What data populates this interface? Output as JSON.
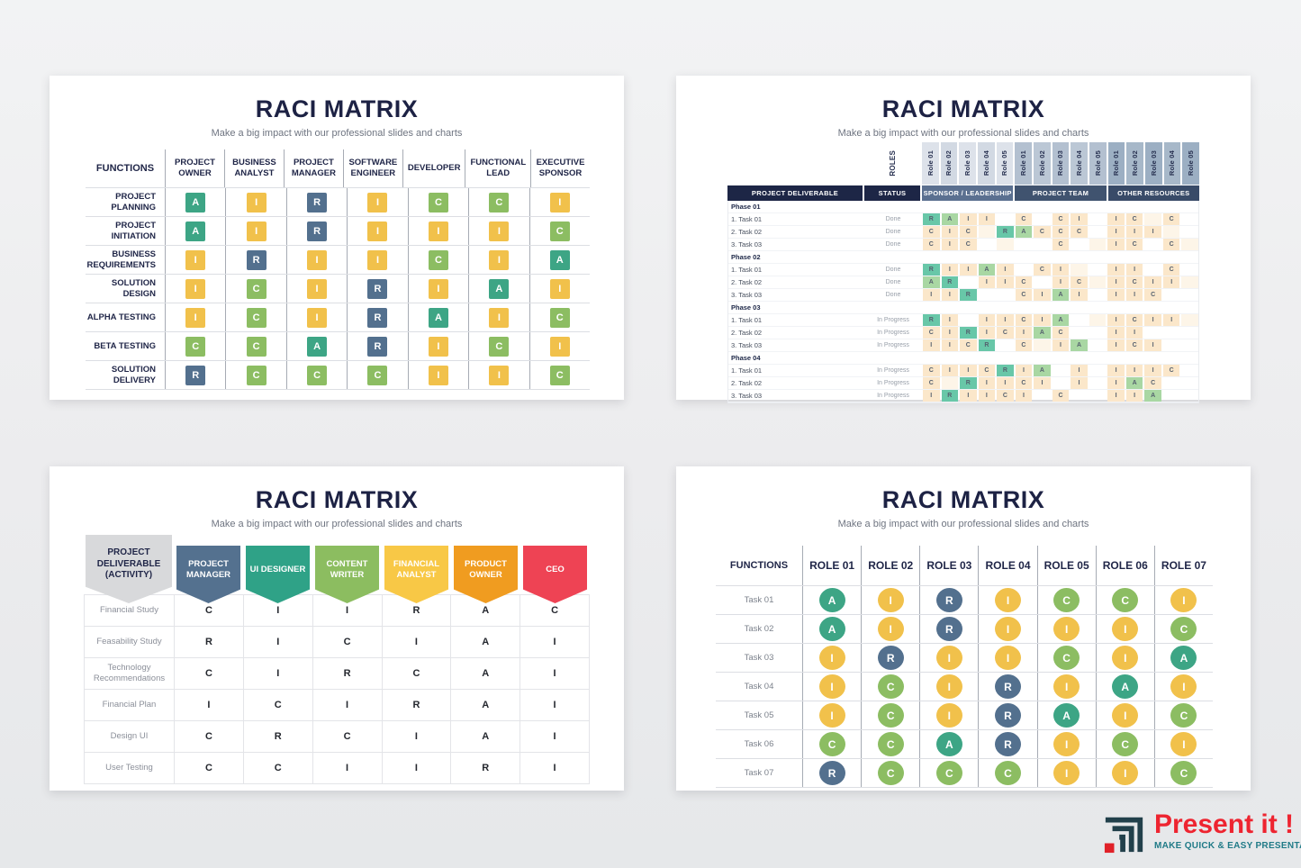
{
  "slides": {
    "s1": {
      "title": "RACI MATRIX",
      "subtitle": "Make a big impact with our professional slides and charts"
    },
    "s2": {
      "title": "RACI MATRIX",
      "subtitle": "Make a big impact with our professional slides and charts"
    },
    "s3": {
      "title": "RACI MATRIX",
      "subtitle": "Make a big impact with our professional slides and charts"
    },
    "s4": {
      "title": "RACI MATRIX",
      "subtitle": "Make a big impact with our professional slides and charts"
    }
  },
  "palette": {
    "navy": "#1d2244",
    "subtitle_gray": "#6e7480",
    "letter_colors": {
      "A": "#3da585",
      "I": "#f1c14b",
      "R": "#53708e",
      "C": "#8cbd62"
    },
    "s2": {
      "fill": {
        "R": "#68c7a8",
        "A": "#a9d7a3",
        "C": "#fbe7ca",
        "I": "#fbe7ca"
      },
      "empty_tint": "#fdf5e8",
      "band_colors": [
        "#1d2646",
        "#1d2646",
        "#5b7090",
        "#40536f",
        "#394b68"
      ],
      "group_shades": [
        [
          "#dde2ea",
          "#d2d9e3"
        ],
        [
          "#b3c0d0",
          "#bbc7d5"
        ],
        [
          "#9cafc3",
          "#a7b8c9"
        ]
      ]
    },
    "s3": {
      "deliverable_bg": "#d8d9db",
      "column_colors": [
        "#54718f",
        "#2fa287",
        "#8cbd60",
        "#f8c846",
        "#f09c20",
        "#ee4354"
      ]
    }
  },
  "slide2_labels": {
    "roles_corner": "ROLES",
    "role_labels": [
      "Role 01",
      "Role 02",
      "Role 03",
      "Role 04",
      "Role 05"
    ],
    "band": [
      "PROJECT DELIVERABLE",
      "STATUS",
      "SPONSOR / LEADERSHIP",
      "PROJECT TEAM",
      "OTHER RESOURCES"
    ]
  },
  "logo": {
    "name": "Present it !",
    "tagline": "MAKE QUICK & EASY PRESENTATIONS",
    "name_color": "#ee2430",
    "tagline_color": "#1f7a87",
    "icon_color": "#22404b",
    "icon_accent": "#e02128"
  },
  "chart_data": [
    {
      "type": "table",
      "title": "RACI Matrix — Functions × Project roles",
      "columns": [
        "FUNCTIONS",
        "PROJECT OWNER",
        "BUSINESS ANALYST",
        "PROJECT MANAGER",
        "SOFTWARE ENGINEER",
        "DEVELOPER",
        "FUNCTIONAL LEAD",
        "EXECUTIVE SPONSOR"
      ],
      "rows": [
        [
          "PROJECT PLANNING",
          "A",
          "I",
          "R",
          "I",
          "C",
          "C",
          "I"
        ],
        [
          "PROJECT INITIATION",
          "A",
          "I",
          "R",
          "I",
          "I",
          "I",
          "C"
        ],
        [
          "BUSINESS REQUIREMENTS",
          "I",
          "R",
          "I",
          "I",
          "C",
          "I",
          "A"
        ],
        [
          "SOLUTION DESIGN",
          "I",
          "C",
          "I",
          "R",
          "I",
          "A",
          "I"
        ],
        [
          "ALPHA TESTING",
          "I",
          "C",
          "I",
          "R",
          "A",
          "I",
          "C"
        ],
        [
          "BETA TESTING",
          "C",
          "C",
          "A",
          "R",
          "I",
          "C",
          "I"
        ],
        [
          "SOLUTION DELIVERY",
          "R",
          "C",
          "C",
          "C",
          "I",
          "I",
          "C"
        ]
      ]
    },
    {
      "type": "table",
      "title": "RACI Matrix — Project deliverables × Roles (Sponsor / Leadership, Project Team, Other Resources; Role 01–05 each)",
      "columns": [
        "PROJECT DELIVERABLE",
        "STATUS",
        "SL Role 01",
        "SL Role 02",
        "SL Role 03",
        "SL Role 04",
        "SL Role 05",
        "PT Role 01",
        "PT Role 02",
        "PT Role 03",
        "PT Role 04",
        "PT Role 05",
        "OR Role 01",
        "OR Role 02",
        "OR Role 03",
        "OR Role 04",
        "OR Role 05"
      ],
      "sections": [
        {
          "name": "Phase 01",
          "rows": [
            [
              "1. Task 01",
              "Done",
              "R",
              "A",
              "I",
              "I",
              "",
              "C",
              "",
              "C",
              "I",
              "",
              "I",
              "C",
              "",
              "C",
              ""
            ],
            [
              "2. Task 02",
              "Done",
              "C",
              "I",
              "C",
              "",
              "R",
              "A",
              "C",
              "C",
              "C",
              "",
              "I",
              "I",
              "I",
              "",
              ""
            ],
            [
              "3. Task 03",
              "Done",
              "C",
              "I",
              "C",
              "",
              "",
              "",
              "",
              "C",
              "",
              "",
              "I",
              "C",
              "",
              "C",
              ""
            ]
          ]
        },
        {
          "name": "Phase 02",
          "rows": [
            [
              "1. Task 01",
              "Done",
              "R",
              "I",
              "I",
              "A",
              "I",
              "",
              "C",
              "I",
              "",
              "",
              "I",
              "I",
              "",
              "C",
              ""
            ],
            [
              "2. Task 02",
              "Done",
              "A",
              "R",
              "",
              "I",
              "I",
              "C",
              "",
              "I",
              "C",
              "",
              "I",
              "C",
              "I",
              "I",
              ""
            ],
            [
              "3. Task 03",
              "Done",
              "I",
              "I",
              "R",
              "",
              "",
              "C",
              "I",
              "A",
              "I",
              "",
              "I",
              "I",
              "C",
              "",
              ""
            ]
          ]
        },
        {
          "name": "Phase 03",
          "rows": [
            [
              "1. Task 01",
              "In Progress",
              "R",
              "I",
              "",
              "I",
              "I",
              "C",
              "I",
              "A",
              "",
              "",
              "I",
              "C",
              "I",
              "I",
              ""
            ],
            [
              "2. Task 02",
              "In Progress",
              "C",
              "I",
              "R",
              "I",
              "C",
              "I",
              "A",
              "C",
              "",
              "",
              "I",
              "I",
              "",
              "",
              ""
            ],
            [
              "3. Task 03",
              "In Progress",
              "I",
              "I",
              "C",
              "R",
              "",
              "C",
              "",
              "I",
              "A",
              "",
              "I",
              "C",
              "I",
              "",
              ""
            ]
          ]
        },
        {
          "name": "Phase 04",
          "rows": [
            [
              "1. Task 01",
              "In Progress",
              "C",
              "I",
              "I",
              "C",
              "R",
              "I",
              "A",
              "",
              "I",
              "",
              "I",
              "I",
              "I",
              "C",
              ""
            ],
            [
              "2. Task 02",
              "In Progress",
              "C",
              "",
              "R",
              "I",
              "I",
              "C",
              "I",
              "",
              "I",
              "",
              "I",
              "A",
              "C",
              "",
              ""
            ],
            [
              "3. Task 03",
              "In Progress",
              "I",
              "R",
              "I",
              "I",
              "C",
              "I",
              "",
              "C",
              "",
              "",
              "I",
              "I",
              "A",
              "",
              ""
            ]
          ]
        }
      ]
    },
    {
      "type": "table",
      "title": "RACI Matrix — Project deliverable (activity) × Team roles",
      "columns": [
        "PROJECT DELIVERABLE (ACTIVITY)",
        "PROJECT MANAGER",
        "UI DESIGNER",
        "CONTENT WRITER",
        "FINANCIAL ANALYST",
        "PRODUCT OWNER",
        "CEO"
      ],
      "rows": [
        [
          "Financial Study",
          "C",
          "I",
          "I",
          "R",
          "A",
          "C"
        ],
        [
          "Feasability Study",
          "R",
          "I",
          "C",
          "I",
          "A",
          "I"
        ],
        [
          "Technology Recommendations",
          "C",
          "I",
          "R",
          "C",
          "A",
          "I"
        ],
        [
          "Financial Plan",
          "I",
          "C",
          "I",
          "R",
          "A",
          "I"
        ],
        [
          "Design UI",
          "C",
          "R",
          "C",
          "I",
          "A",
          "I"
        ],
        [
          "User Testing",
          "C",
          "C",
          "I",
          "I",
          "R",
          "I"
        ]
      ]
    },
    {
      "type": "table",
      "title": "RACI Matrix — Tasks × Role 01–07",
      "columns": [
        "FUNCTIONS",
        "ROLE 01",
        "ROLE 02",
        "ROLE 03",
        "ROLE 04",
        "ROLE 05",
        "ROLE 06",
        "ROLE 07"
      ],
      "rows": [
        [
          "Task 01",
          "A",
          "I",
          "R",
          "I",
          "C",
          "C",
          "I"
        ],
        [
          "Task 02",
          "A",
          "I",
          "R",
          "I",
          "I",
          "I",
          "C"
        ],
        [
          "Task 03",
          "I",
          "R",
          "I",
          "I",
          "C",
          "I",
          "A"
        ],
        [
          "Task 04",
          "I",
          "C",
          "I",
          "R",
          "I",
          "A",
          "I"
        ],
        [
          "Task 05",
          "I",
          "C",
          "I",
          "R",
          "A",
          "I",
          "C"
        ],
        [
          "Task 06",
          "C",
          "C",
          "A",
          "R",
          "I",
          "C",
          "I"
        ],
        [
          "Task 07",
          "R",
          "C",
          "C",
          "C",
          "I",
          "I",
          "C"
        ]
      ]
    }
  ]
}
